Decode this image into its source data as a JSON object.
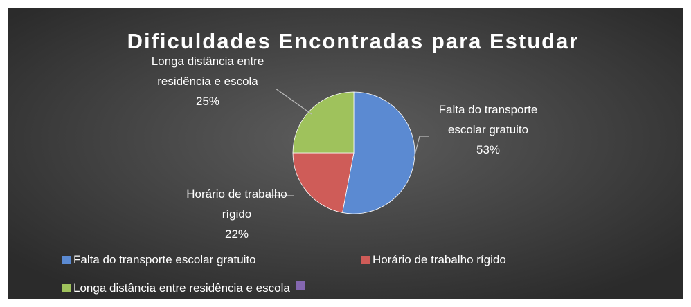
{
  "chart_data": {
    "type": "pie",
    "title": "Dificuldades Encontradas para Estudar",
    "categories": [
      "Falta do transporte escolar gratuito",
      "Horário de trabalho rígido",
      "Longa distância entre residência e escola",
      null
    ],
    "values": [
      53,
      22,
      25,
      0
    ],
    "value_labels": [
      "53%",
      "22%",
      "25%",
      null
    ],
    "colors": [
      "#5b8ad2",
      "#cf5c58",
      "#9fc25c",
      "#8467b0"
    ],
    "legend": "bottom"
  }
}
